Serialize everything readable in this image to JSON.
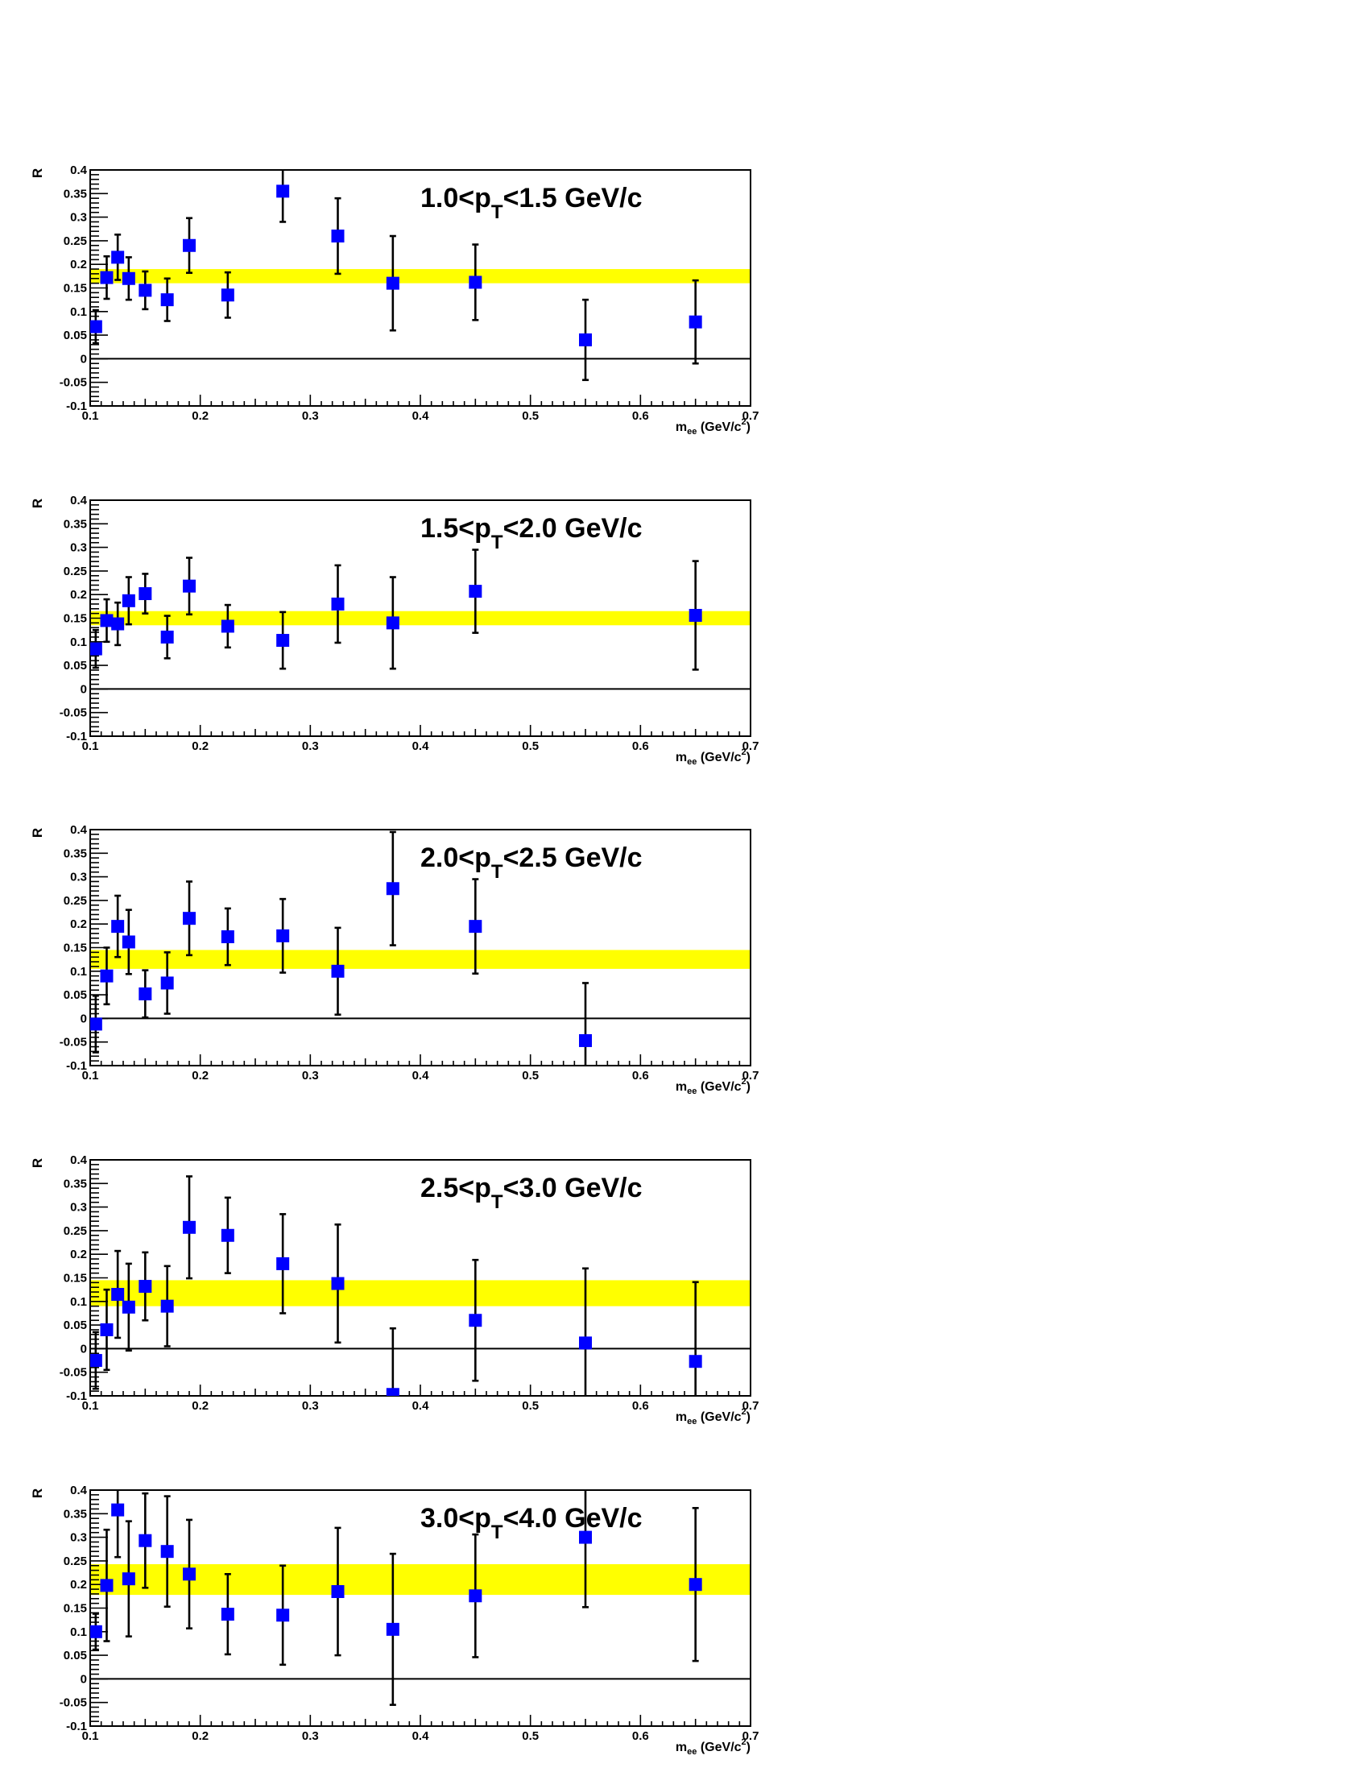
{
  "chart_data": [
    {
      "type": "scatter",
      "title": {
        "prefix": "1.0<p",
        "sub": "T",
        "suffix": "<1.5 GeV/c"
      },
      "ylabel": "R",
      "xlabel": {
        "main": "m",
        "sub": "ee",
        "tail": " (GeV/c",
        "sup": "2",
        "end": ")"
      },
      "xlim": [
        0.1,
        0.7
      ],
      "ylim": [
        -0.1,
        0.4
      ],
      "xticks": [
        "0.1",
        "0.2",
        "0.3",
        "0.4",
        "0.5",
        "0.6",
        "0.7"
      ],
      "yticks": [
        "-0.1",
        "-0.05",
        "0",
        "0.05",
        "0.1",
        "0.15",
        "0.2",
        "0.25",
        "0.3",
        "0.35",
        "0.4"
      ],
      "band": {
        "low": 0.16,
        "high": 0.19,
        "color": "#ffff00"
      },
      "marker_color": "#0000ff",
      "points": [
        {
          "x": 0.105,
          "y": 0.068,
          "err": 0.035
        },
        {
          "x": 0.115,
          "y": 0.172,
          "err": 0.045
        },
        {
          "x": 0.125,
          "y": 0.215,
          "err": 0.048
        },
        {
          "x": 0.135,
          "y": 0.17,
          "err": 0.045
        },
        {
          "x": 0.15,
          "y": 0.145,
          "err": 0.04
        },
        {
          "x": 0.17,
          "y": 0.125,
          "err": 0.045
        },
        {
          "x": 0.19,
          "y": 0.24,
          "err": 0.058
        },
        {
          "x": 0.225,
          "y": 0.135,
          "err": 0.048
        },
        {
          "x": 0.275,
          "y": 0.355,
          "err": 0.065
        },
        {
          "x": 0.325,
          "y": 0.26,
          "err": 0.08
        },
        {
          "x": 0.375,
          "y": 0.16,
          "err": 0.1
        },
        {
          "x": 0.45,
          "y": 0.162,
          "err": 0.08
        },
        {
          "x": 0.55,
          "y": 0.04,
          "err": 0.085
        },
        {
          "x": 0.65,
          "y": 0.078,
          "err": 0.088
        }
      ]
    },
    {
      "type": "scatter",
      "title": {
        "prefix": "1.5<p",
        "sub": "T",
        "suffix": "<2.0 GeV/c"
      },
      "ylabel": "R",
      "xlabel": {
        "main": "m",
        "sub": "ee",
        "tail": " (GeV/c",
        "sup": "2",
        "end": ")"
      },
      "xlim": [
        0.1,
        0.7
      ],
      "ylim": [
        -0.1,
        0.4
      ],
      "xticks": [
        "0.1",
        "0.2",
        "0.3",
        "0.4",
        "0.5",
        "0.6",
        "0.7"
      ],
      "yticks": [
        "-0.1",
        "-0.05",
        "0",
        "0.05",
        "0.1",
        "0.15",
        "0.2",
        "0.25",
        "0.3",
        "0.35",
        "0.4"
      ],
      "band": {
        "low": 0.135,
        "high": 0.165,
        "color": "#ffff00"
      },
      "marker_color": "#0000ff",
      "points": [
        {
          "x": 0.105,
          "y": 0.085,
          "err": 0.04
        },
        {
          "x": 0.115,
          "y": 0.145,
          "err": 0.045
        },
        {
          "x": 0.125,
          "y": 0.138,
          "err": 0.045
        },
        {
          "x": 0.135,
          "y": 0.187,
          "err": 0.05
        },
        {
          "x": 0.15,
          "y": 0.202,
          "err": 0.042
        },
        {
          "x": 0.17,
          "y": 0.11,
          "err": 0.045
        },
        {
          "x": 0.19,
          "y": 0.218,
          "err": 0.06
        },
        {
          "x": 0.225,
          "y": 0.133,
          "err": 0.045
        },
        {
          "x": 0.275,
          "y": 0.103,
          "err": 0.06
        },
        {
          "x": 0.325,
          "y": 0.18,
          "err": 0.082
        },
        {
          "x": 0.375,
          "y": 0.14,
          "err": 0.097
        },
        {
          "x": 0.45,
          "y": 0.207,
          "err": 0.088
        },
        {
          "x": 0.65,
          "y": 0.156,
          "err": 0.115
        }
      ]
    },
    {
      "type": "scatter",
      "title": {
        "prefix": "2.0<p",
        "sub": "T",
        "suffix": "<2.5 GeV/c"
      },
      "ylabel": "R",
      "xlabel": {
        "main": "m",
        "sub": "ee",
        "tail": " (GeV/c",
        "sup": "2",
        "end": ")"
      },
      "xlim": [
        0.1,
        0.7
      ],
      "ylim": [
        -0.1,
        0.4
      ],
      "xticks": [
        "0.1",
        "0.2",
        "0.3",
        "0.4",
        "0.5",
        "0.6",
        "0.7"
      ],
      "yticks": [
        "-0.1",
        "-0.05",
        "0",
        "0.05",
        "0.1",
        "0.15",
        "0.2",
        "0.25",
        "0.3",
        "0.35",
        "0.4"
      ],
      "band": {
        "low": 0.105,
        "high": 0.145,
        "color": "#ffff00"
      },
      "marker_color": "#0000ff",
      "points": [
        {
          "x": 0.105,
          "y": -0.012,
          "err": 0.06
        },
        {
          "x": 0.115,
          "y": 0.09,
          "err": 0.06
        },
        {
          "x": 0.125,
          "y": 0.195,
          "err": 0.065
        },
        {
          "x": 0.135,
          "y": 0.162,
          "err": 0.068
        },
        {
          "x": 0.15,
          "y": 0.052,
          "err": 0.05
        },
        {
          "x": 0.17,
          "y": 0.075,
          "err": 0.065
        },
        {
          "x": 0.19,
          "y": 0.212,
          "err": 0.078
        },
        {
          "x": 0.225,
          "y": 0.173,
          "err": 0.06
        },
        {
          "x": 0.275,
          "y": 0.175,
          "err": 0.078
        },
        {
          "x": 0.325,
          "y": 0.1,
          "err": 0.092
        },
        {
          "x": 0.375,
          "y": 0.275,
          "err": 0.12
        },
        {
          "x": 0.45,
          "y": 0.195,
          "err": 0.1
        },
        {
          "x": 0.55,
          "y": -0.047,
          "err": 0.122
        }
      ]
    },
    {
      "type": "scatter",
      "title": {
        "prefix": "2.5<p",
        "sub": "T",
        "suffix": "<3.0 GeV/c"
      },
      "ylabel": "R",
      "xlabel": {
        "main": "m",
        "sub": "ee",
        "tail": " (GeV/c",
        "sup": "2",
        "end": ")"
      },
      "xlim": [
        0.1,
        0.7
      ],
      "ylim": [
        -0.1,
        0.4
      ],
      "xticks": [
        "0.1",
        "0.2",
        "0.3",
        "0.4",
        "0.5",
        "0.6",
        "0.7"
      ],
      "yticks": [
        "-0.1",
        "-0.05",
        "0",
        "0.05",
        "0.1",
        "0.15",
        "0.2",
        "0.25",
        "0.3",
        "0.35",
        "0.4"
      ],
      "band": {
        "low": 0.09,
        "high": 0.145,
        "color": "#ffff00"
      },
      "marker_color": "#0000ff",
      "points": [
        {
          "x": 0.105,
          "y": -0.025,
          "err": 0.06
        },
        {
          "x": 0.115,
          "y": 0.04,
          "err": 0.085
        },
        {
          "x": 0.125,
          "y": 0.115,
          "err": 0.092
        },
        {
          "x": 0.135,
          "y": 0.088,
          "err": 0.092
        },
        {
          "x": 0.15,
          "y": 0.132,
          "err": 0.072
        },
        {
          "x": 0.17,
          "y": 0.09,
          "err": 0.085
        },
        {
          "x": 0.19,
          "y": 0.257,
          "err": 0.108
        },
        {
          "x": 0.225,
          "y": 0.24,
          "err": 0.08
        },
        {
          "x": 0.275,
          "y": 0.18,
          "err": 0.105
        },
        {
          "x": 0.325,
          "y": 0.138,
          "err": 0.125
        },
        {
          "x": 0.375,
          "y": -0.097,
          "err": 0.14
        },
        {
          "x": 0.45,
          "y": 0.06,
          "err": 0.128
        },
        {
          "x": 0.55,
          "y": 0.012,
          "err": 0.158
        },
        {
          "x": 0.65,
          "y": -0.027,
          "err": 0.168
        }
      ]
    },
    {
      "type": "scatter",
      "title": {
        "prefix": "3.0<p",
        "sub": "T",
        "suffix": "<4.0 GeV/c"
      },
      "ylabel": "R",
      "xlabel": {
        "main": "m",
        "sub": "ee",
        "tail": " (GeV/c",
        "sup": "2",
        "end": ")"
      },
      "xlim": [
        0.1,
        0.7
      ],
      "ylim": [
        -0.1,
        0.4
      ],
      "xticks": [
        "0.1",
        "0.2",
        "0.3",
        "0.4",
        "0.5",
        "0.6",
        "0.7"
      ],
      "yticks": [
        "-0.1",
        "-0.05",
        "0",
        "0.05",
        "0.1",
        "0.15",
        "0.2",
        "0.25",
        "0.3",
        "0.35",
        "0.4"
      ],
      "band": {
        "low": 0.178,
        "high": 0.243,
        "color": "#ffff00"
      },
      "marker_color": "#0000ff",
      "points": [
        {
          "x": 0.105,
          "y": 0.1,
          "err": 0.038
        },
        {
          "x": 0.115,
          "y": 0.198,
          "err": 0.118
        },
        {
          "x": 0.125,
          "y": 0.358,
          "err": 0.1
        },
        {
          "x": 0.135,
          "y": 0.212,
          "err": 0.122
        },
        {
          "x": 0.15,
          "y": 0.293,
          "err": 0.1
        },
        {
          "x": 0.17,
          "y": 0.27,
          "err": 0.117
        },
        {
          "x": 0.19,
          "y": 0.222,
          "err": 0.115
        },
        {
          "x": 0.225,
          "y": 0.137,
          "err": 0.085
        },
        {
          "x": 0.275,
          "y": 0.135,
          "err": 0.105
        },
        {
          "x": 0.325,
          "y": 0.185,
          "err": 0.135
        },
        {
          "x": 0.375,
          "y": 0.105,
          "err": 0.16
        },
        {
          "x": 0.45,
          "y": 0.176,
          "err": 0.13
        },
        {
          "x": 0.55,
          "y": 0.3,
          "err": 0.148
        },
        {
          "x": 0.65,
          "y": 0.2,
          "err": 0.162
        }
      ]
    }
  ]
}
